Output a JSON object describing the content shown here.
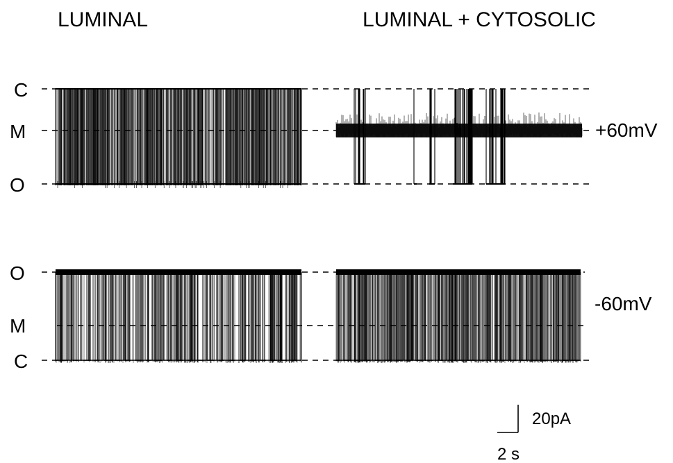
{
  "chart_data": {
    "type": "line",
    "description_free": true,
    "column_titles": [
      "LUMINAL",
      "LUMINAL + CYTOSOLIC"
    ],
    "rows": [
      {
        "voltage_label": "+60mV",
        "levels": [
          {
            "label": "C",
            "key": "closed"
          },
          {
            "label": "M",
            "key": "middle"
          },
          {
            "label": "O",
            "key": "open"
          }
        ],
        "traces": [
          {
            "condition": "LUMINAL",
            "resting_level": "closed",
            "excursion_level": "open",
            "dominant_state": "switching between C and O",
            "event_density": 0.85
          },
          {
            "condition": "LUMINAL + CYTOSOLIC",
            "resting_level": "middle",
            "excursion_level": "open",
            "dominant_state": "M (substate) with rare openings",
            "event_density": 0.08
          }
        ]
      },
      {
        "voltage_label": "-60mV",
        "levels": [
          {
            "label": "O",
            "key": "open"
          },
          {
            "label": "M",
            "key": "middle"
          },
          {
            "label": "C",
            "key": "closed"
          }
        ],
        "traces": [
          {
            "condition": "LUMINAL",
            "resting_level": "open",
            "excursion_level": "closed",
            "dominant_state": "mostly O with many closures",
            "event_density": 0.7
          },
          {
            "condition": "LUMINAL + CYTOSOLIC",
            "resting_level": "open",
            "excursion_level": "closed",
            "dominant_state": "mostly O with many closures",
            "event_density": 0.9
          }
        ]
      }
    ],
    "scale_bar": {
      "current": "20pA",
      "time": "2 s"
    },
    "grid": false,
    "legend": "none"
  }
}
